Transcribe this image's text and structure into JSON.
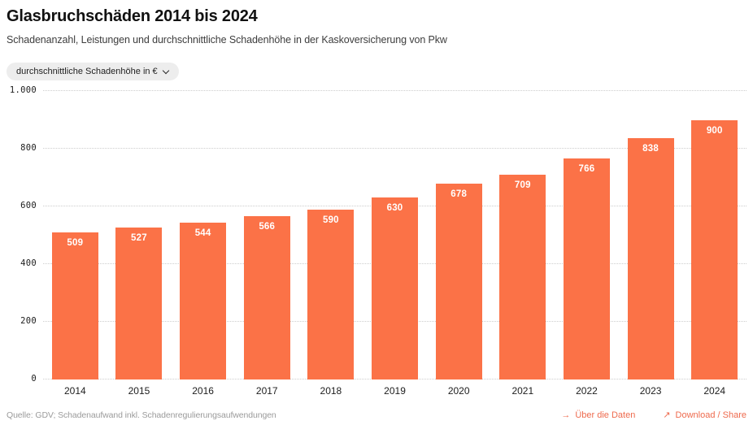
{
  "header": {
    "title": "Glasbruchschäden 2014 bis 2024",
    "subtitle": "Schadenanzahl, Leistungen und durchschnittliche Schadenhöhe in der Kaskoversicherung von Pkw"
  },
  "filter": {
    "selected_option": "durchschnittliche Schadenhöhe in €"
  },
  "chart_data": {
    "type": "bar",
    "title": "Glasbruchschäden 2014 bis 2024",
    "series_label": "durchschnittliche Schadenhöhe in €",
    "categories": [
      "2014",
      "2015",
      "2016",
      "2017",
      "2018",
      "2019",
      "2020",
      "2021",
      "2022",
      "2023",
      "2024"
    ],
    "values": [
      509,
      527,
      544,
      566,
      590,
      630,
      678,
      709,
      766,
      838,
      900
    ],
    "xlabel": "",
    "ylabel": "",
    "ylim": [
      0,
      1000
    ],
    "yticks": [
      0,
      200,
      400,
      600,
      800,
      1000
    ],
    "ytick_labels": [
      "0",
      "200",
      "400",
      "600",
      "800",
      "1.000"
    ],
    "grid": "horizontal-dotted",
    "legend": "none",
    "bar_color": "#fb7247",
    "value_label_color": "#ffffff"
  },
  "footer": {
    "source": "Quelle: GDV; Schadenaufwand inkl. Schadenregulierungsaufwendungen",
    "links": [
      {
        "icon": "→",
        "label": "Über die Daten"
      },
      {
        "icon": "↗",
        "label": "Download / Share"
      }
    ]
  },
  "colors": {
    "accent": "#ee6a4d",
    "pill_background": "#ededed",
    "gridline": "#cdcdcd",
    "source_text": "#9b9b9b"
  }
}
